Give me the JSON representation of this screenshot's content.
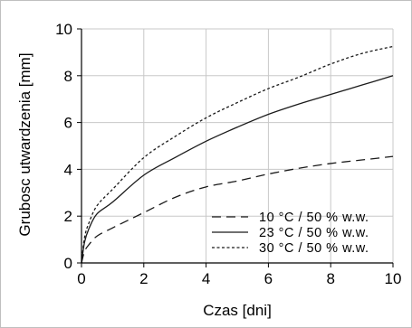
{
  "chart_data": {
    "type": "line",
    "xlabel": "Czas [dni]",
    "ylabel": "Grubosc utwardzenia [mm]",
    "xlim": [
      0,
      10
    ],
    "ylim": [
      0,
      10
    ],
    "xticks": [
      0,
      2,
      4,
      6,
      8,
      10
    ],
    "yticks": [
      0,
      2,
      4,
      6,
      8,
      10
    ],
    "grid": true,
    "legend_position": "bottom-right",
    "x": [
      0,
      0.1,
      0.25,
      0.5,
      1,
      2,
      3,
      4,
      5,
      6,
      7,
      8,
      9,
      10
    ],
    "series": [
      {
        "name": "10 °C / 50 % w.w.",
        "dash": "dashed",
        "values": [
          0,
          0.5,
          0.8,
          1.15,
          1.5,
          2.15,
          2.8,
          3.25,
          3.5,
          3.8,
          4.05,
          4.25,
          4.4,
          4.55
        ]
      },
      {
        "name": "23 °C / 50 % w.w.",
        "dash": "solid",
        "values": [
          0,
          0.9,
          1.5,
          2.1,
          2.6,
          3.75,
          4.5,
          5.2,
          5.8,
          6.35,
          6.8,
          7.2,
          7.6,
          8.0
        ]
      },
      {
        "name": "30 °C / 50 % w.w.",
        "dash": "dotted",
        "values": [
          0,
          1.1,
          1.75,
          2.45,
          3.15,
          4.5,
          5.4,
          6.2,
          6.85,
          7.45,
          7.95,
          8.5,
          8.95,
          9.25
        ]
      }
    ]
  }
}
